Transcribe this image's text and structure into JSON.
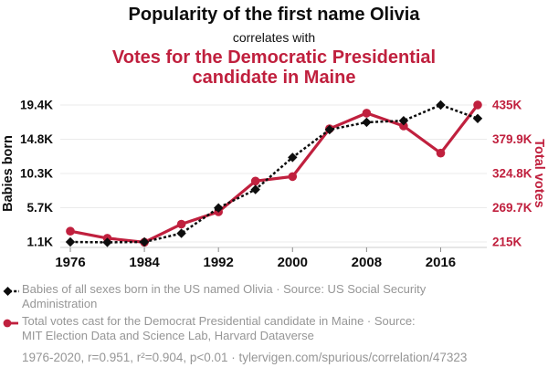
{
  "header": {
    "title": "Popularity of the first name Olivia",
    "subtitle": "correlates with",
    "secondary_title": "Votes for the Democratic Presidential candidate in Maine"
  },
  "colors": {
    "accent_red": "#c0203e",
    "series_black": "#0d0d0d",
    "legend_gray": "#969696",
    "gridline_gray": "#ebebeb"
  },
  "chart_data": {
    "type": "line",
    "x": [
      1976,
      1980,
      1984,
      1988,
      1992,
      1996,
      2000,
      2004,
      2008,
      2012,
      2016,
      2020
    ],
    "series": [
      {
        "name": "Babies of all sexes born in the US named Olivia",
        "axis": "left",
        "units": "thousands",
        "color": "#0d0d0d",
        "style": "dashed",
        "marker": "diamond",
        "values": [
          1.1,
          1.05,
          1.1,
          2.25,
          5.65,
          8.1,
          12.4,
          16.1,
          17.1,
          17.3,
          19.4,
          17.6
        ]
      },
      {
        "name": "Total votes cast for the Democrat Presidential candidate in Maine",
        "axis": "right",
        "units": "thousands",
        "color": "#c0203e",
        "style": "solid",
        "marker": "circle",
        "values": [
          232.3,
          221.0,
          214.5,
          243.6,
          263.4,
          312.8,
          320.0,
          396.8,
          421.9,
          401.3,
          357.7,
          435.1
        ]
      }
    ],
    "left_axis": {
      "label": "Babies born",
      "min": 1.1,
      "max": 19.4,
      "ticks": [
        "19.4K",
        "14.8K",
        "10.3K",
        "5.7K",
        "1.1K"
      ]
    },
    "right_axis": {
      "label": "Total votes",
      "min": 215,
      "max": 435,
      "ticks": [
        "435K",
        "379.9K",
        "324.8K",
        "269.7K",
        "215K"
      ]
    },
    "x_axis": {
      "tick_years": [
        1976,
        1984,
        1992,
        2000,
        2008,
        2016
      ],
      "tick_labels": [
        "1976",
        "1984",
        "1992",
        "2000",
        "2008",
        "2016"
      ]
    },
    "grid": true,
    "legend_position": "bottom"
  },
  "legend": {
    "items": [
      {
        "marker": "black-diamond-dashed",
        "lines": [
          "Babies of all sexes born in the US named Olivia · Source: US Social Security",
          "Administration"
        ]
      },
      {
        "marker": "red-circle-solid",
        "lines": [
          "Total votes cast for the Democrat Presidential candidate in Maine · Source:",
          "MIT Election Data and Science Lab, Harvard Dataverse"
        ]
      }
    ]
  },
  "footer": {
    "text": "1976-2020, r=0.951, r²=0.904, p<0.01 · tylervigen.com/spurious/correlation/47323"
  }
}
